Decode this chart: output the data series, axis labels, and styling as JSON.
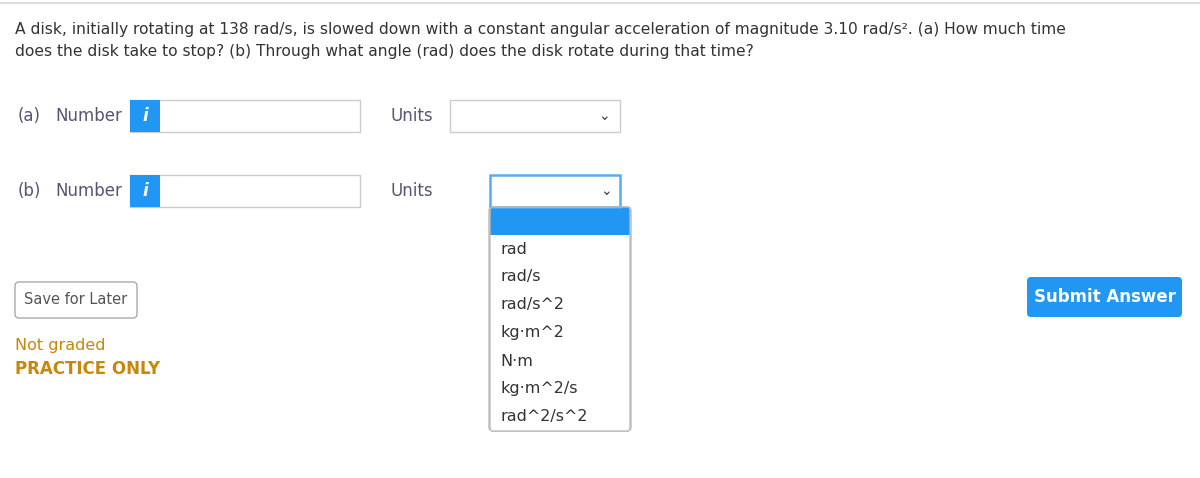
{
  "title_line1": "A disk, initially rotating at 138 rad/s, is slowed down with a constant angular acceleration of magnitude 3.10 rad/s². (a) How much time",
  "title_line2": "does the disk take to stop? (b) Through what angle (rad) does the disk rotate during that time?",
  "label_a": "(a)",
  "label_b": "(b)",
  "number_label": "Number",
  "units_label": "Units",
  "info_button_color": "#2196F3",
  "info_button_text": "i",
  "dropdown_b_items": [
    "rad",
    "rad/s",
    "rad/s^2",
    "kg·m^2",
    "N·m",
    "kg·m^2/s",
    "rad^2/s^2"
  ],
  "selected_item_color": "#2196F3",
  "dropdown_border_color": "#5AACEE",
  "save_button_text": "Save for Later",
  "submit_button_text": "Submit Answer",
  "submit_button_color": "#2196F3",
  "not_graded_text": "Not graded",
  "practice_only_text": "PRACTICE ONLY",
  "practice_color": "#c8860a",
  "background_color": "#ffffff",
  "text_color": "#333333",
  "label_color": "#555577",
  "border_color": "#cccccc",
  "chevron_char": "⌄"
}
